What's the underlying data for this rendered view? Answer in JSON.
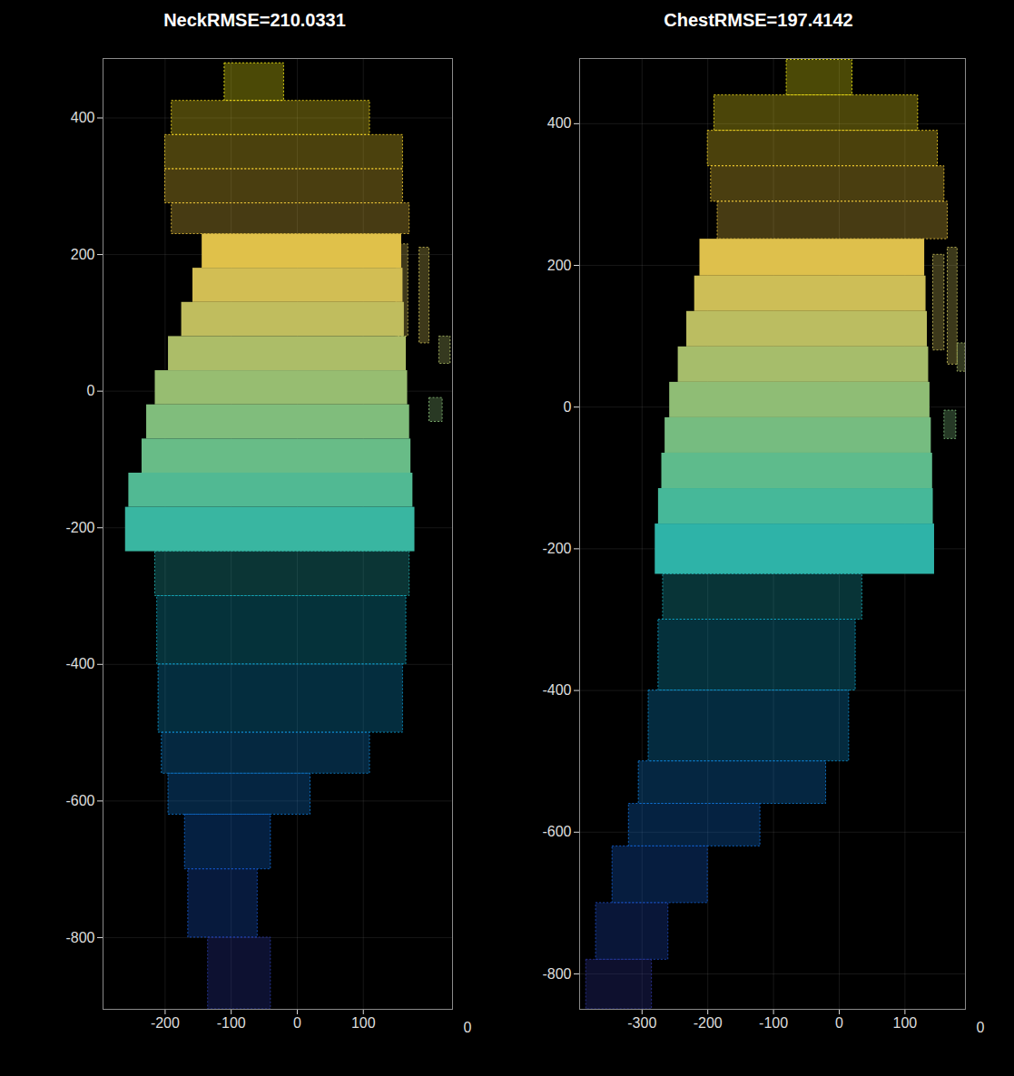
{
  "chart_data": [
    {
      "type": "pointcloud",
      "title": "NeckRMSE=210.0331",
      "xlim": [
        -294,
        235
      ],
      "ylim": [
        -905,
        487
      ],
      "xticks": [
        -200,
        -100,
        0,
        100
      ],
      "yticks": [
        -800,
        -600,
        -400,
        -200,
        0,
        200,
        400
      ],
      "zticks": [
        0
      ],
      "grid": true,
      "dense": {
        "x1": [
          -144,
          -158,
          -175,
          -195,
          -215,
          -228,
          -235,
          -255,
          -260
        ],
        "x2": [
          158,
          160,
          162,
          165,
          167,
          170,
          172,
          175,
          178
        ],
        "y1": [
          180,
          130,
          80,
          30,
          -20,
          -70,
          -120,
          -170,
          -235
        ],
        "y2": [
          230,
          180,
          130,
          80,
          30,
          -20,
          -70,
          -120,
          -170
        ]
      },
      "sparse": {
        "x1": [
          -110,
          -190,
          -200,
          -200,
          -190,
          -215,
          -212,
          -210,
          -205,
          -195,
          -170,
          -165,
          -135,
          150,
          185,
          215,
          200
        ],
        "x2": [
          -20,
          110,
          160,
          160,
          170,
          170,
          165,
          160,
          110,
          20,
          -40,
          -60,
          -40,
          168,
          200,
          232,
          220
        ],
        "y1": [
          425,
          375,
          325,
          275,
          230,
          -300,
          -400,
          -500,
          -560,
          -620,
          -700,
          -800,
          -905,
          80,
          70,
          40,
          -45
        ],
        "y2": [
          480,
          425,
          375,
          325,
          275,
          -235,
          -300,
          -400,
          -500,
          -560,
          -620,
          -700,
          -800,
          215,
          210,
          80,
          -10
        ]
      }
    },
    {
      "type": "pointcloud",
      "title": "ChestRMSE=197.4142",
      "xlim": [
        -395,
        192
      ],
      "ylim": [
        -850,
        492
      ],
      "xticks": [
        -300,
        -200,
        -100,
        0,
        100
      ],
      "yticks": [
        -800,
        -600,
        -400,
        -200,
        0,
        200,
        400
      ],
      "zticks": [
        0
      ],
      "grid": true,
      "dense": {
        "x1": [
          -212,
          -220,
          -232,
          -245,
          -258,
          -265,
          -270,
          -275,
          -280
        ],
        "x2": [
          130,
          132,
          134,
          136,
          138,
          140,
          142,
          143,
          145
        ],
        "y1": [
          185,
          135,
          85,
          35,
          -15,
          -65,
          -115,
          -165,
          -236
        ],
        "y2": [
          237,
          185,
          135,
          85,
          35,
          -15,
          -65,
          -115,
          -165
        ]
      },
      "sparse": {
        "x1": [
          -80,
          -190,
          -200,
          -195,
          -185,
          -268,
          -275,
          -290,
          -305,
          -320,
          -345,
          -370,
          -385,
          143,
          165,
          180,
          160
        ],
        "x2": [
          20,
          120,
          150,
          160,
          165,
          35,
          25,
          15,
          -20,
          -120,
          -200,
          -260,
          -285,
          160,
          180,
          192,
          178
        ],
        "y1": [
          440,
          390,
          340,
          290,
          237,
          -300,
          -400,
          -500,
          -560,
          -620,
          -700,
          -780,
          -850,
          80,
          60,
          50,
          -45
        ],
        "y2": [
          490,
          440,
          390,
          340,
          290,
          -236,
          -300,
          -400,
          -500,
          -560,
          -620,
          -700,
          -780,
          215,
          225,
          90,
          -5
        ]
      }
    }
  ]
}
